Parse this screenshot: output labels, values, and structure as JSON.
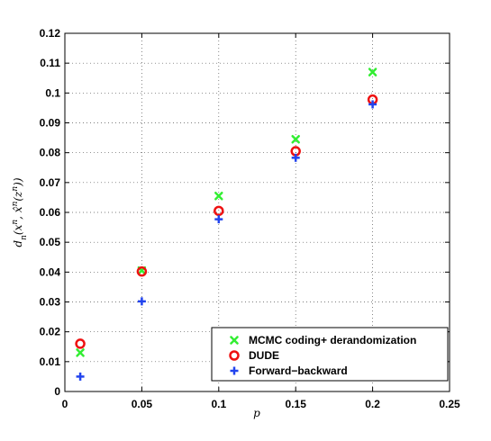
{
  "chart_data": {
    "type": "scatter",
    "title": "",
    "xlabel": "p",
    "ylabel": "d_n(x^n, x̂^n(z^n))",
    "xlim": [
      0,
      0.25
    ],
    "ylim": [
      0,
      0.12
    ],
    "x_ticks": [
      0,
      0.05,
      0.1,
      0.15,
      0.2,
      0.25
    ],
    "x_tick_labels": [
      "0",
      "0.05",
      "0.1",
      "0.15",
      "0.2",
      "0.25"
    ],
    "y_ticks": [
      0,
      0.01,
      0.02,
      0.03,
      0.04,
      0.05,
      0.06,
      0.07,
      0.08,
      0.09,
      0.1,
      0.11,
      0.12
    ],
    "y_tick_labels": [
      "0",
      "0.01",
      "0.02",
      "0.03",
      "0.04",
      "0.05",
      "0.06",
      "0.07",
      "0.08",
      "0.09",
      "0.1",
      "0.11",
      "0.12"
    ],
    "grid": true,
    "legend_position": "bottom-right",
    "series": [
      {
        "name": "MCMC coding+ derandomization",
        "marker": "x",
        "color": "#33ee33",
        "x": [
          0.01,
          0.05,
          0.1,
          0.15,
          0.2
        ],
        "y": [
          0.013,
          0.0405,
          0.0655,
          0.0845,
          0.107
        ]
      },
      {
        "name": "DUDE",
        "marker": "o",
        "color": "#ee1111",
        "x": [
          0.01,
          0.05,
          0.1,
          0.15,
          0.2
        ],
        "y": [
          0.016,
          0.0402,
          0.0605,
          0.0805,
          0.0978
        ]
      },
      {
        "name": "Forward−backward",
        "marker": "+",
        "color": "#2244ee",
        "x": [
          0.01,
          0.05,
          0.1,
          0.15,
          0.2
        ],
        "y": [
          0.005,
          0.0302,
          0.0577,
          0.0783,
          0.0962
        ]
      }
    ]
  }
}
